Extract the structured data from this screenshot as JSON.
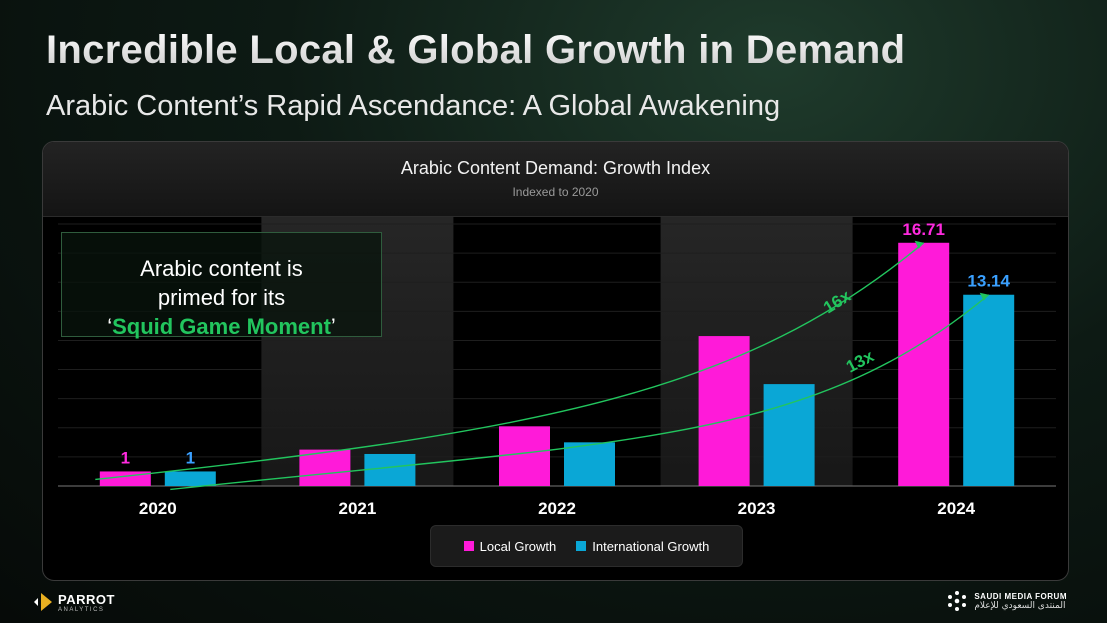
{
  "header": {
    "title": "Incredible Local & Global Growth in Demand",
    "subtitle": "Arabic Content’s Rapid Ascendance: A Global Awakening"
  },
  "callout": {
    "line1": "Arabic content is",
    "line2": "primed for its",
    "open_quote": "‘",
    "highlight": "Squid Game Moment",
    "close_quote": "’"
  },
  "footer": {
    "left_logo_main": "PARROT",
    "left_logo_sub": "ANALYTICS",
    "right_logo_main": "SAUDI MEDIA FORUM",
    "right_logo_sub": "المنتدى السعودي للإعلام"
  },
  "colors": {
    "local": "#ff1ad9",
    "international": "#0aa7d6",
    "trend": "#22c55e",
    "label_local": "#ff2adf",
    "label_intl": "#3aa0ff"
  },
  "chart_data": {
    "type": "bar",
    "title": "Arabic Content Demand: Growth Index",
    "subtitle": "Indexed to 2020",
    "categories": [
      "2020",
      "2021",
      "2022",
      "2023",
      "2024"
    ],
    "series": [
      {
        "name": "Local Growth",
        "values": [
          1,
          2.5,
          4.1,
          10.3,
          16.71
        ]
      },
      {
        "name": "International Growth",
        "values": [
          1,
          2.2,
          3.0,
          7.0,
          13.14
        ]
      }
    ],
    "data_labels": {
      "2020": [
        "1",
        "1"
      ],
      "2024": [
        "16.71",
        "13.14"
      ]
    },
    "trend_labels": [
      "16x",
      "13x"
    ],
    "ylim": [
      0,
      18
    ],
    "grid": true,
    "legend": "bottom-center"
  }
}
